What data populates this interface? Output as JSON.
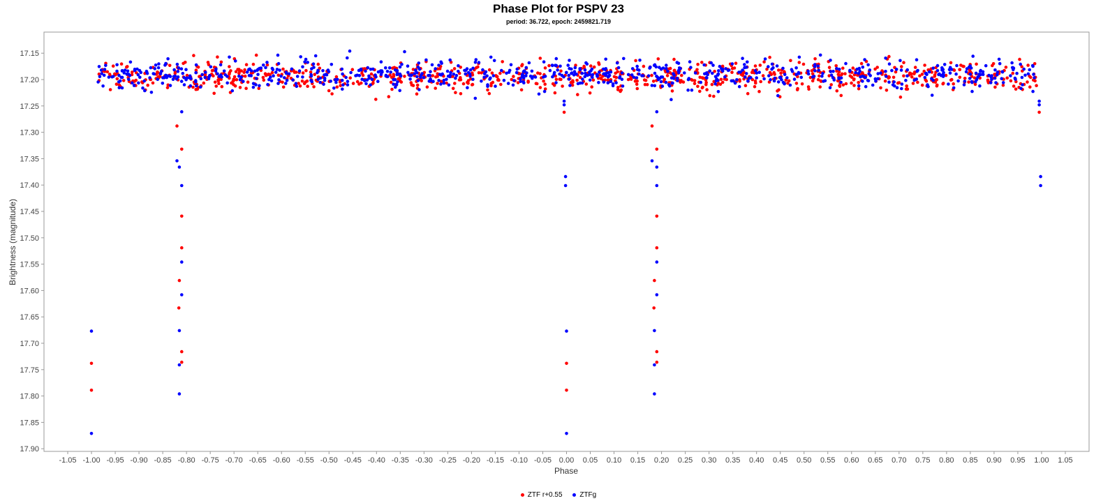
{
  "chart_data": {
    "type": "scatter",
    "title": "Phase Plot for PSPV 23",
    "subtitle": "period: 36.722, epoch: 2459821.719",
    "xlabel": "Phase",
    "ylabel": "Brightness (magnitude)",
    "xlim": [
      -1.1,
      1.1
    ],
    "ylim": [
      17.9,
      17.11
    ],
    "y_inverted": true,
    "x_ticks": [
      -1.05,
      -1.0,
      -0.95,
      -0.9,
      -0.85,
      -0.8,
      -0.75,
      -0.7,
      -0.65,
      -0.6,
      -0.55,
      -0.5,
      -0.45,
      -0.4,
      -0.35,
      -0.3,
      -0.25,
      -0.2,
      -0.15,
      -0.1,
      -0.05,
      0.0,
      0.05,
      0.1,
      0.15,
      0.2,
      0.25,
      0.3,
      0.35,
      0.4,
      0.45,
      0.5,
      0.55,
      0.6,
      0.65,
      0.7,
      0.75,
      0.8,
      0.85,
      0.9,
      0.95,
      1.0,
      1.05
    ],
    "y_ticks": [
      17.15,
      17.2,
      17.25,
      17.3,
      17.35,
      17.4,
      17.45,
      17.5,
      17.55,
      17.6,
      17.65,
      17.7,
      17.75,
      17.8,
      17.85,
      17.9
    ],
    "grid": false,
    "legend_position": "bottom-center",
    "series": [
      {
        "name": "ZTF r+0.55",
        "color": "#ff0000",
        "baseline": {
          "x_range": [
            -0.99,
            0.99
          ],
          "y_center": 17.195,
          "y_spread": 0.03,
          "approx_count": 900
        },
        "points": [
          [
            -1.0,
            17.738
          ],
          [
            -1.0,
            17.789
          ],
          [
            -0.82,
            17.288
          ],
          [
            -0.81,
            17.332
          ],
          [
            -0.81,
            17.459
          ],
          [
            -0.81,
            17.519
          ],
          [
            -0.815,
            17.581
          ],
          [
            -0.816,
            17.633
          ],
          [
            -0.81,
            17.716
          ],
          [
            -0.81,
            17.736
          ],
          [
            -0.005,
            17.262
          ],
          [
            0.0,
            17.738
          ],
          [
            0.0,
            17.789
          ],
          [
            0.18,
            17.288
          ],
          [
            0.19,
            17.332
          ],
          [
            0.19,
            17.459
          ],
          [
            0.19,
            17.519
          ],
          [
            0.185,
            17.581
          ],
          [
            0.184,
            17.633
          ],
          [
            0.19,
            17.716
          ],
          [
            0.19,
            17.736
          ],
          [
            0.995,
            17.262
          ]
        ]
      },
      {
        "name": "ZTFg",
        "color": "#0000ff",
        "baseline": {
          "x_range": [
            -0.99,
            0.99
          ],
          "y_center": 17.19,
          "y_spread": 0.03,
          "approx_count": 800
        },
        "points": [
          [
            -1.0,
            17.677
          ],
          [
            -1.0,
            17.871
          ],
          [
            -0.81,
            17.261
          ],
          [
            -0.82,
            17.354
          ],
          [
            -0.815,
            17.366
          ],
          [
            -0.81,
            17.401
          ],
          [
            -0.81,
            17.546
          ],
          [
            -0.81,
            17.608
          ],
          [
            -0.815,
            17.676
          ],
          [
            -0.815,
            17.741
          ],
          [
            -0.815,
            17.796
          ],
          [
            -0.005,
            17.241
          ],
          [
            -0.005,
            17.248
          ],
          [
            -0.002,
            17.384
          ],
          [
            -0.002,
            17.401
          ],
          [
            0.0,
            17.677
          ],
          [
            0.0,
            17.871
          ],
          [
            0.19,
            17.261
          ],
          [
            0.18,
            17.354
          ],
          [
            0.19,
            17.366
          ],
          [
            0.19,
            17.401
          ],
          [
            0.19,
            17.546
          ],
          [
            0.19,
            17.608
          ],
          [
            0.185,
            17.676
          ],
          [
            0.185,
            17.741
          ],
          [
            0.185,
            17.796
          ],
          [
            0.995,
            17.241
          ],
          [
            0.995,
            17.248
          ],
          [
            0.998,
            17.384
          ],
          [
            0.998,
            17.401
          ]
        ]
      }
    ]
  }
}
